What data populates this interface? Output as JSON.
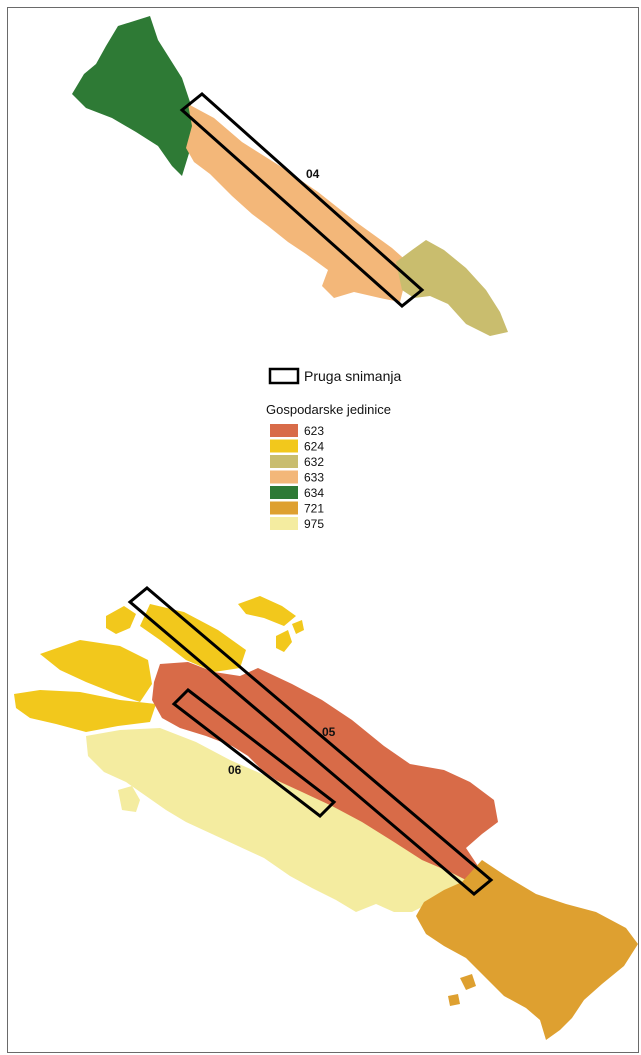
{
  "legend": {
    "strip_label": "Pruga snimanja",
    "units_title": "Gospodarske jedinice",
    "units": [
      {
        "code": "623",
        "color": "#d86b48"
      },
      {
        "code": "624",
        "color": "#f2c81c"
      },
      {
        "code": "632",
        "color": "#c9bd6e"
      },
      {
        "code": "633",
        "color": "#f3b779"
      },
      {
        "code": "634",
        "color": "#2e7a35"
      },
      {
        "code": "721",
        "color": "#dea030"
      },
      {
        "code": "975",
        "color": "#f4eca0"
      }
    ]
  },
  "strips": [
    {
      "label": "04"
    },
    {
      "label": "05"
    },
    {
      "label": "06"
    }
  ]
}
